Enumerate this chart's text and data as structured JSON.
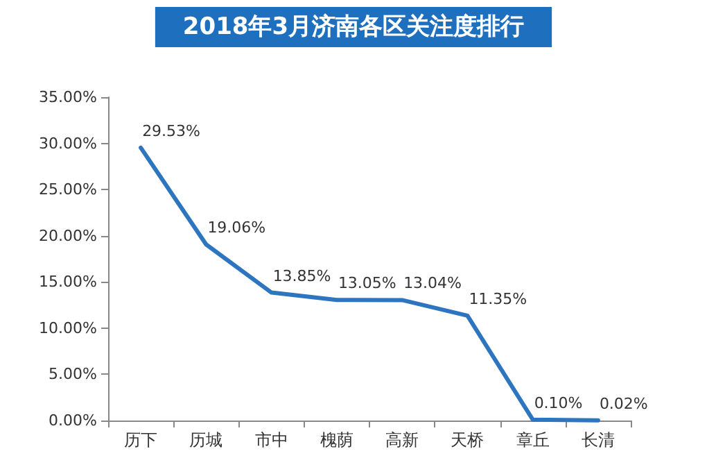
{
  "chart_data": {
    "type": "line",
    "title": "2018年3月济南各区关注度排行",
    "categories": [
      "历下",
      "历城",
      "市中",
      "槐荫",
      "高新",
      "天桥",
      "章丘",
      "长清"
    ],
    "series": [
      {
        "color": "#2e75c0",
        "values": [
          29.53,
          19.06,
          13.85,
          13.05,
          13.04,
          11.35,
          0.1,
          0.02
        ],
        "value_labels": [
          "29.53%",
          "19.06%",
          "13.85%",
          "13.05%",
          "13.04%",
          "11.35%",
          "0.10%",
          "0.02%"
        ]
      }
    ],
    "ylim": [
      0,
      35
    ],
    "yticks": [
      {
        "value": 0,
        "label": "0.00%"
      },
      {
        "value": 5,
        "label": "5.00%"
      },
      {
        "value": 10,
        "label": "10.00%"
      },
      {
        "value": 15,
        "label": "15.00%"
      },
      {
        "value": 20,
        "label": "20.00%"
      },
      {
        "value": 25,
        "label": "25.00%"
      },
      {
        "value": 30,
        "label": "30.00%"
      },
      {
        "value": 35,
        "label": "35.00%"
      }
    ],
    "grid": false,
    "marker": "none",
    "line_style": "solid"
  }
}
